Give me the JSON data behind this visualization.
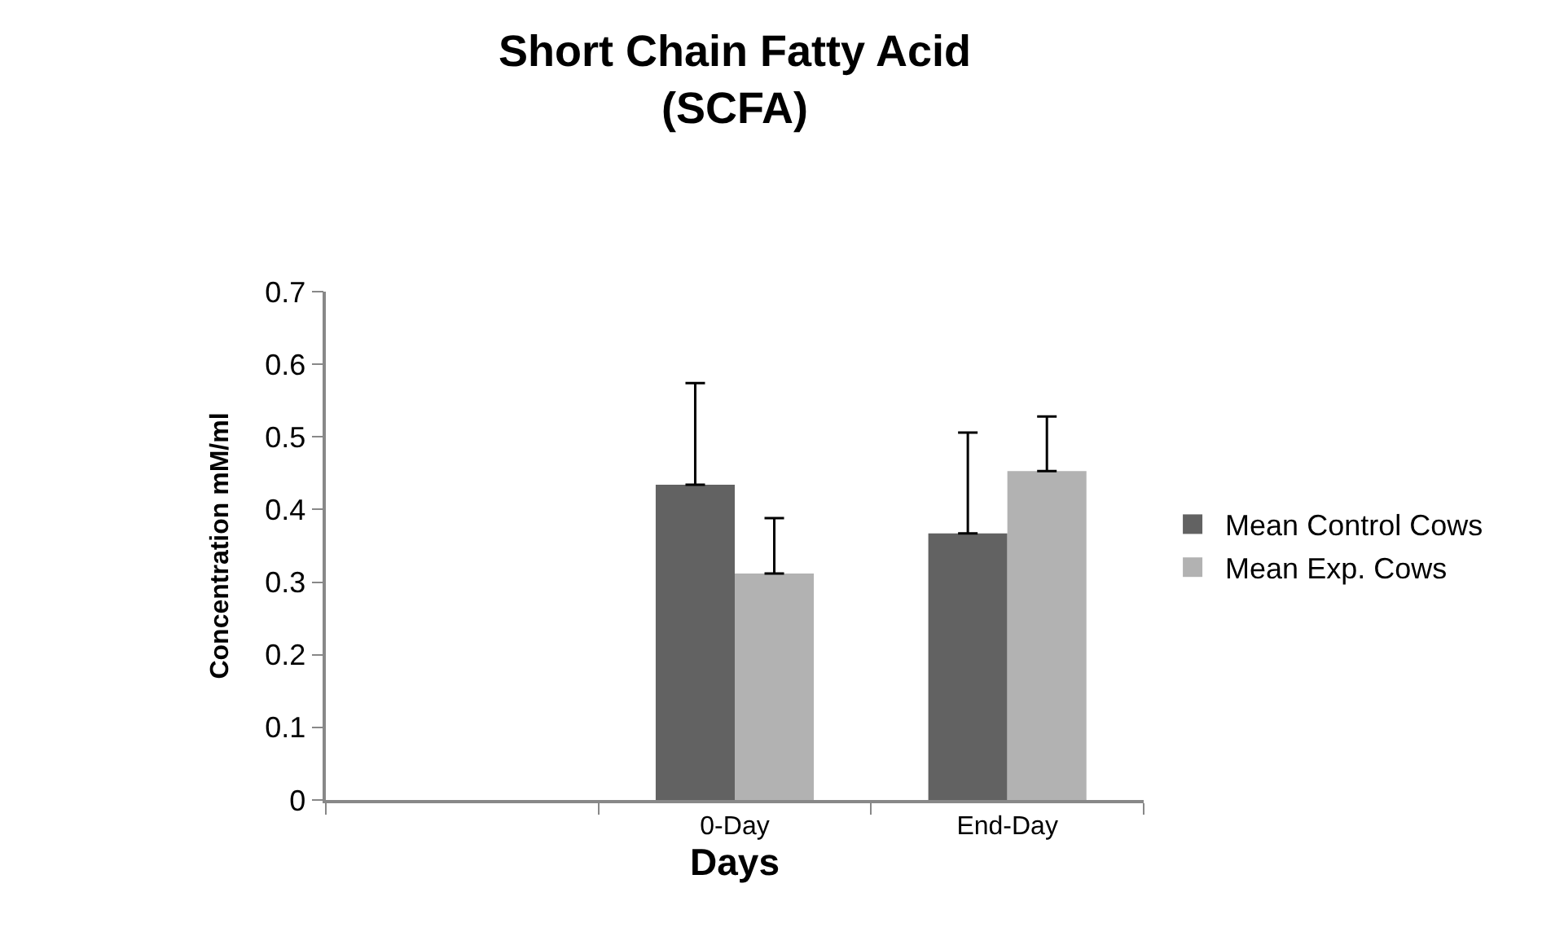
{
  "chart_data": {
    "type": "bar",
    "title": "Short Chain Fatty Acid\n(SCFA)",
    "xlabel": "Days",
    "ylabel": "Concentration mM/ml",
    "categories": [
      null,
      "0-Day",
      "End-Day"
    ],
    "series": [
      {
        "name": "Mean Control Cows",
        "color": "#626262",
        "values": [
          null,
          0.434,
          0.367
        ],
        "errors": [
          null,
          [
            0.434,
            0.574
          ],
          [
            0.367,
            0.506
          ]
        ]
      },
      {
        "name": "Mean Exp. Cows",
        "color": "#b2b2b2",
        "values": [
          null,
          0.312,
          0.453
        ],
        "errors": [
          null,
          [
            0.312,
            0.388
          ],
          [
            0.453,
            0.528
          ]
        ]
      }
    ],
    "ylim": [
      0,
      0.7
    ],
    "yticks": [
      {
        "value": 0,
        "label": "0"
      },
      0.1,
      0.2,
      0.3,
      0.4,
      0.5,
      0.6,
      0.7
    ],
    "grid": false,
    "legend": "right"
  }
}
